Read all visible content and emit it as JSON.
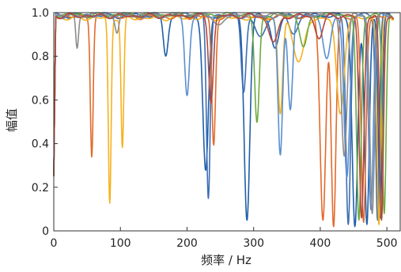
{
  "chart_data": {
    "type": "line",
    "title": "",
    "xlabel": "频率 / Hz",
    "ylabel": "幅值",
    "xlim": [
      0,
      520
    ],
    "ylim": [
      0,
      1.0
    ],
    "xticks": [
      0,
      100,
      200,
      300,
      400,
      500
    ],
    "yticks": [
      0,
      0.2,
      0.4,
      0.6,
      0.8,
      1.0
    ],
    "xtick_labels": [
      "0",
      "100",
      "200",
      "300",
      "400",
      "500"
    ],
    "ytick_labels": [
      "0",
      "0.2",
      "0.4",
      "0.6",
      "0.8",
      "1.0"
    ],
    "grid": false,
    "legend": "none",
    "series": [
      {
        "color": "#1f5fa8",
        "base": 0.985,
        "dips": [
          [
            168,
            0.82,
            5
          ],
          [
            228,
            0.28,
            6
          ],
          [
            290,
            0.05,
            6
          ],
          [
            332,
            0.85,
            8
          ],
          [
            452,
            0.02,
            6
          ],
          [
            470,
            0.03,
            5
          ],
          [
            490,
            0.06,
            4
          ]
        ]
      },
      {
        "color": "#3d6db5",
        "base": 0.99,
        "dips": [
          [
            232,
            0.15,
            4
          ],
          [
            285,
            0.65,
            5
          ],
          [
            310,
            0.9,
            12
          ],
          [
            360,
            0.92,
            10
          ],
          [
            442,
            0.03,
            5
          ],
          [
            486,
            0.05,
            4
          ]
        ]
      },
      {
        "color": "#e26a2c",
        "base": 0.98,
        "dips": [
          [
            57,
            0.35,
            3
          ],
          [
            240,
            0.4,
            4
          ],
          [
            404,
            0.05,
            6
          ],
          [
            420,
            0.02,
            5
          ],
          [
            465,
            0.04,
            5
          ]
        ]
      },
      {
        "color": "#f5b21f",
        "base": 0.975,
        "dips": [
          [
            84,
            0.13,
            3
          ],
          [
            103,
            0.39,
            3
          ],
          [
            340,
            0.55,
            5
          ],
          [
            368,
            0.8,
            12
          ],
          [
            430,
            0.55,
            8
          ],
          [
            488,
            0.03,
            4
          ]
        ]
      },
      {
        "color": "#5a8fd0",
        "base": 0.985,
        "dips": [
          [
            200,
            0.63,
            5
          ],
          [
            340,
            0.35,
            5
          ],
          [
            355,
            0.57,
            5
          ],
          [
            410,
            0.8,
            8
          ],
          [
            440,
            0.25,
            6
          ],
          [
            476,
            0.1,
            5
          ]
        ]
      },
      {
        "color": "#6aaa3e",
        "base": 0.99,
        "dips": [
          [
            305,
            0.5,
            5
          ],
          [
            375,
            0.85,
            8
          ],
          [
            458,
            0.05,
            5
          ],
          [
            496,
            0.08,
            4
          ]
        ]
      },
      {
        "color": "#8c8c8c",
        "base": 0.99,
        "dips": [
          [
            35,
            0.84,
            3
          ],
          [
            95,
            0.92,
            4
          ],
          [
            250,
            0.95,
            10
          ],
          [
            436,
            0.35,
            6
          ],
          [
            478,
            0.08,
            5
          ]
        ]
      },
      {
        "color": "#b5463a",
        "base": 0.985,
        "dips": [
          [
            236,
            0.6,
            5
          ],
          [
            330,
            0.88,
            10
          ],
          [
            398,
            0.9,
            8
          ],
          [
            462,
            0.06,
            5
          ],
          [
            492,
            0.05,
            4
          ]
        ]
      }
    ]
  }
}
